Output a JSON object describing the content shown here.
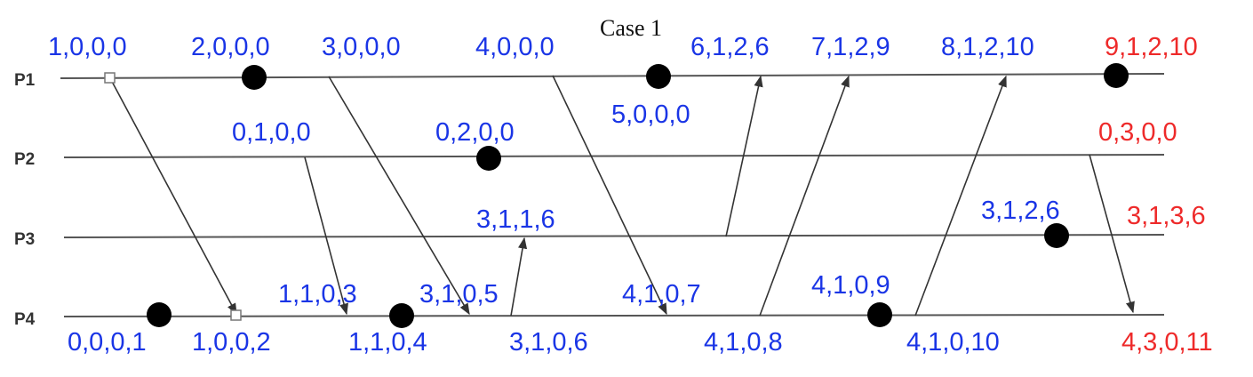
{
  "title": "Case 1",
  "colors": {
    "normal": "#1a35e6",
    "highlight": "#ee2a2a",
    "line": "#555555",
    "event": "#000000"
  },
  "processes": [
    "P1",
    "P2",
    "P3",
    "P4"
  ],
  "labels": {
    "p1_e1": "1,0,0,0",
    "p1_e2": "2,0,0,0",
    "p1_e3": "3,0,0,0",
    "p1_e4": "4,0,0,0",
    "p1_e5": "5,0,0,0",
    "p1_e6": "6,1,2,6",
    "p1_e7": "7,1,2,9",
    "p1_e8": "8,1,2,10",
    "p1_e9": "9,1,2,10",
    "p2_e1": "0,1,0,0",
    "p2_e2": "0,2,0,0",
    "p2_e3": "0,3,0,0",
    "p3_e1": "3,1,1,6",
    "p3_e2": "3,1,2,6",
    "p3_e3": "3,1,3,6",
    "p4_e1": "0,0,0,1",
    "p4_e2": "1,0,0,2",
    "p4_e3": "1,1,0,3",
    "p4_e4": "1,1,0,4",
    "p4_e5": "3,1,0,5",
    "p4_e6": "3,1,0,6",
    "p4_e7": "4,1,0,7",
    "p4_e8": "4,1,0,8",
    "p4_e9": "4,1,0,9",
    "p4_e10": "4,1,0,10",
    "p4_e11": "4,3,0,11"
  }
}
